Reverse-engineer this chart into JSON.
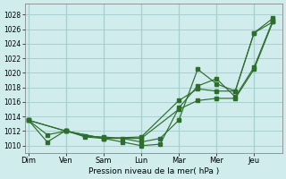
{
  "xlabel": "Pression niveau de la mer( hPa )",
  "background_color": "#d0ecec",
  "grid_color": "#a8d0d0",
  "line_color": "#2d6e2d",
  "ylim": [
    1009.0,
    1029.5
  ],
  "yticks": [
    1010,
    1012,
    1014,
    1016,
    1018,
    1020,
    1022,
    1024,
    1026,
    1028
  ],
  "day_labels": [
    "Dim",
    "Ven",
    "Sam",
    "Lun",
    "Mar",
    "Mer",
    "Jeu"
  ],
  "day_positions": [
    0,
    2,
    4,
    6,
    8,
    10,
    12
  ],
  "xlim": [
    -0.2,
    13.5
  ],
  "line1_x": [
    0,
    1,
    2,
    3,
    4,
    5,
    6,
    7,
    8,
    9,
    10,
    11,
    12,
    13
  ],
  "line1_y": [
    1013.5,
    1011.5,
    1012.0,
    1011.3,
    1011.2,
    1011.0,
    1010.5,
    1011.0,
    1013.5,
    1020.5,
    1018.5,
    1017.5,
    1025.5,
    1027.5
  ],
  "line2_x": [
    0,
    1,
    2,
    3,
    4,
    5,
    6,
    7,
    8,
    9,
    10,
    11,
    12,
    13
  ],
  "line2_y": [
    1013.5,
    1010.5,
    1012.1,
    1011.2,
    1011.0,
    1010.5,
    1010.0,
    1010.2,
    1015.2,
    1018.2,
    1019.2,
    1016.7,
    1020.8,
    1027.2
  ],
  "line3_x": [
    0,
    2,
    4,
    6,
    8,
    9,
    10,
    11,
    12,
    13
  ],
  "line3_y": [
    1013.5,
    1012.0,
    1011.0,
    1011.2,
    1016.2,
    1017.8,
    1017.5,
    1017.5,
    1025.5,
    1027.0
  ],
  "line4_x": [
    0,
    2,
    4,
    6,
    8,
    9,
    10,
    11,
    12,
    13
  ],
  "line4_y": [
    1013.5,
    1012.0,
    1011.0,
    1011.0,
    1015.0,
    1016.2,
    1016.5,
    1016.5,
    1020.5,
    1027.0
  ]
}
